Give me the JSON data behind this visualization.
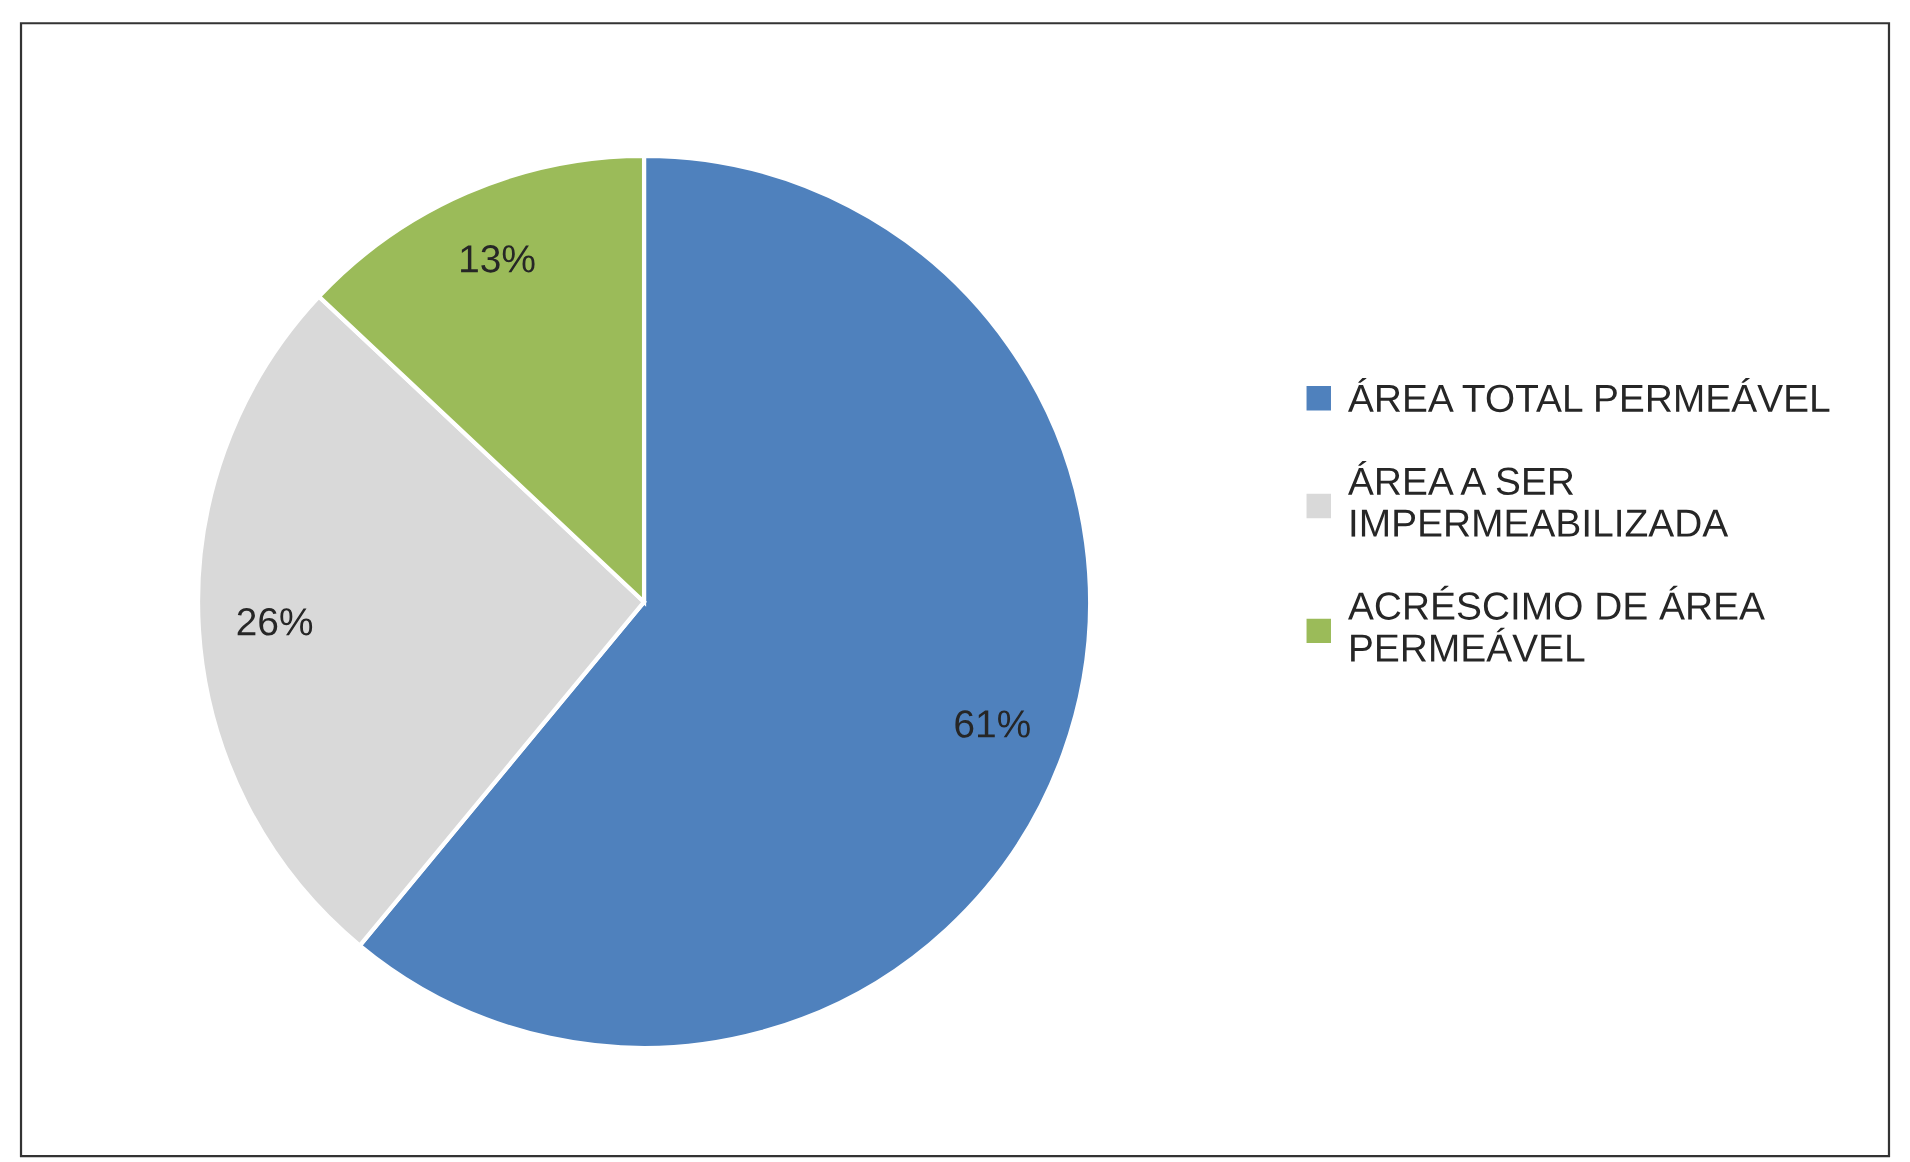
{
  "chart_data": {
    "type": "pie",
    "categories": [
      "ÁREA TOTAL PERMEÁVEL",
      "ÁREA A SER IMPERMEABILIZADA",
      "ACRÉSCIMO DE ÁREA PERMEÁVEL"
    ],
    "values": [
      61,
      26,
      13
    ],
    "colors": [
      "#4f81bd",
      "#d9d9d9",
      "#9bbb59"
    ],
    "value_labels": [
      "61%",
      "26%",
      "13%"
    ],
    "legend": "right"
  }
}
